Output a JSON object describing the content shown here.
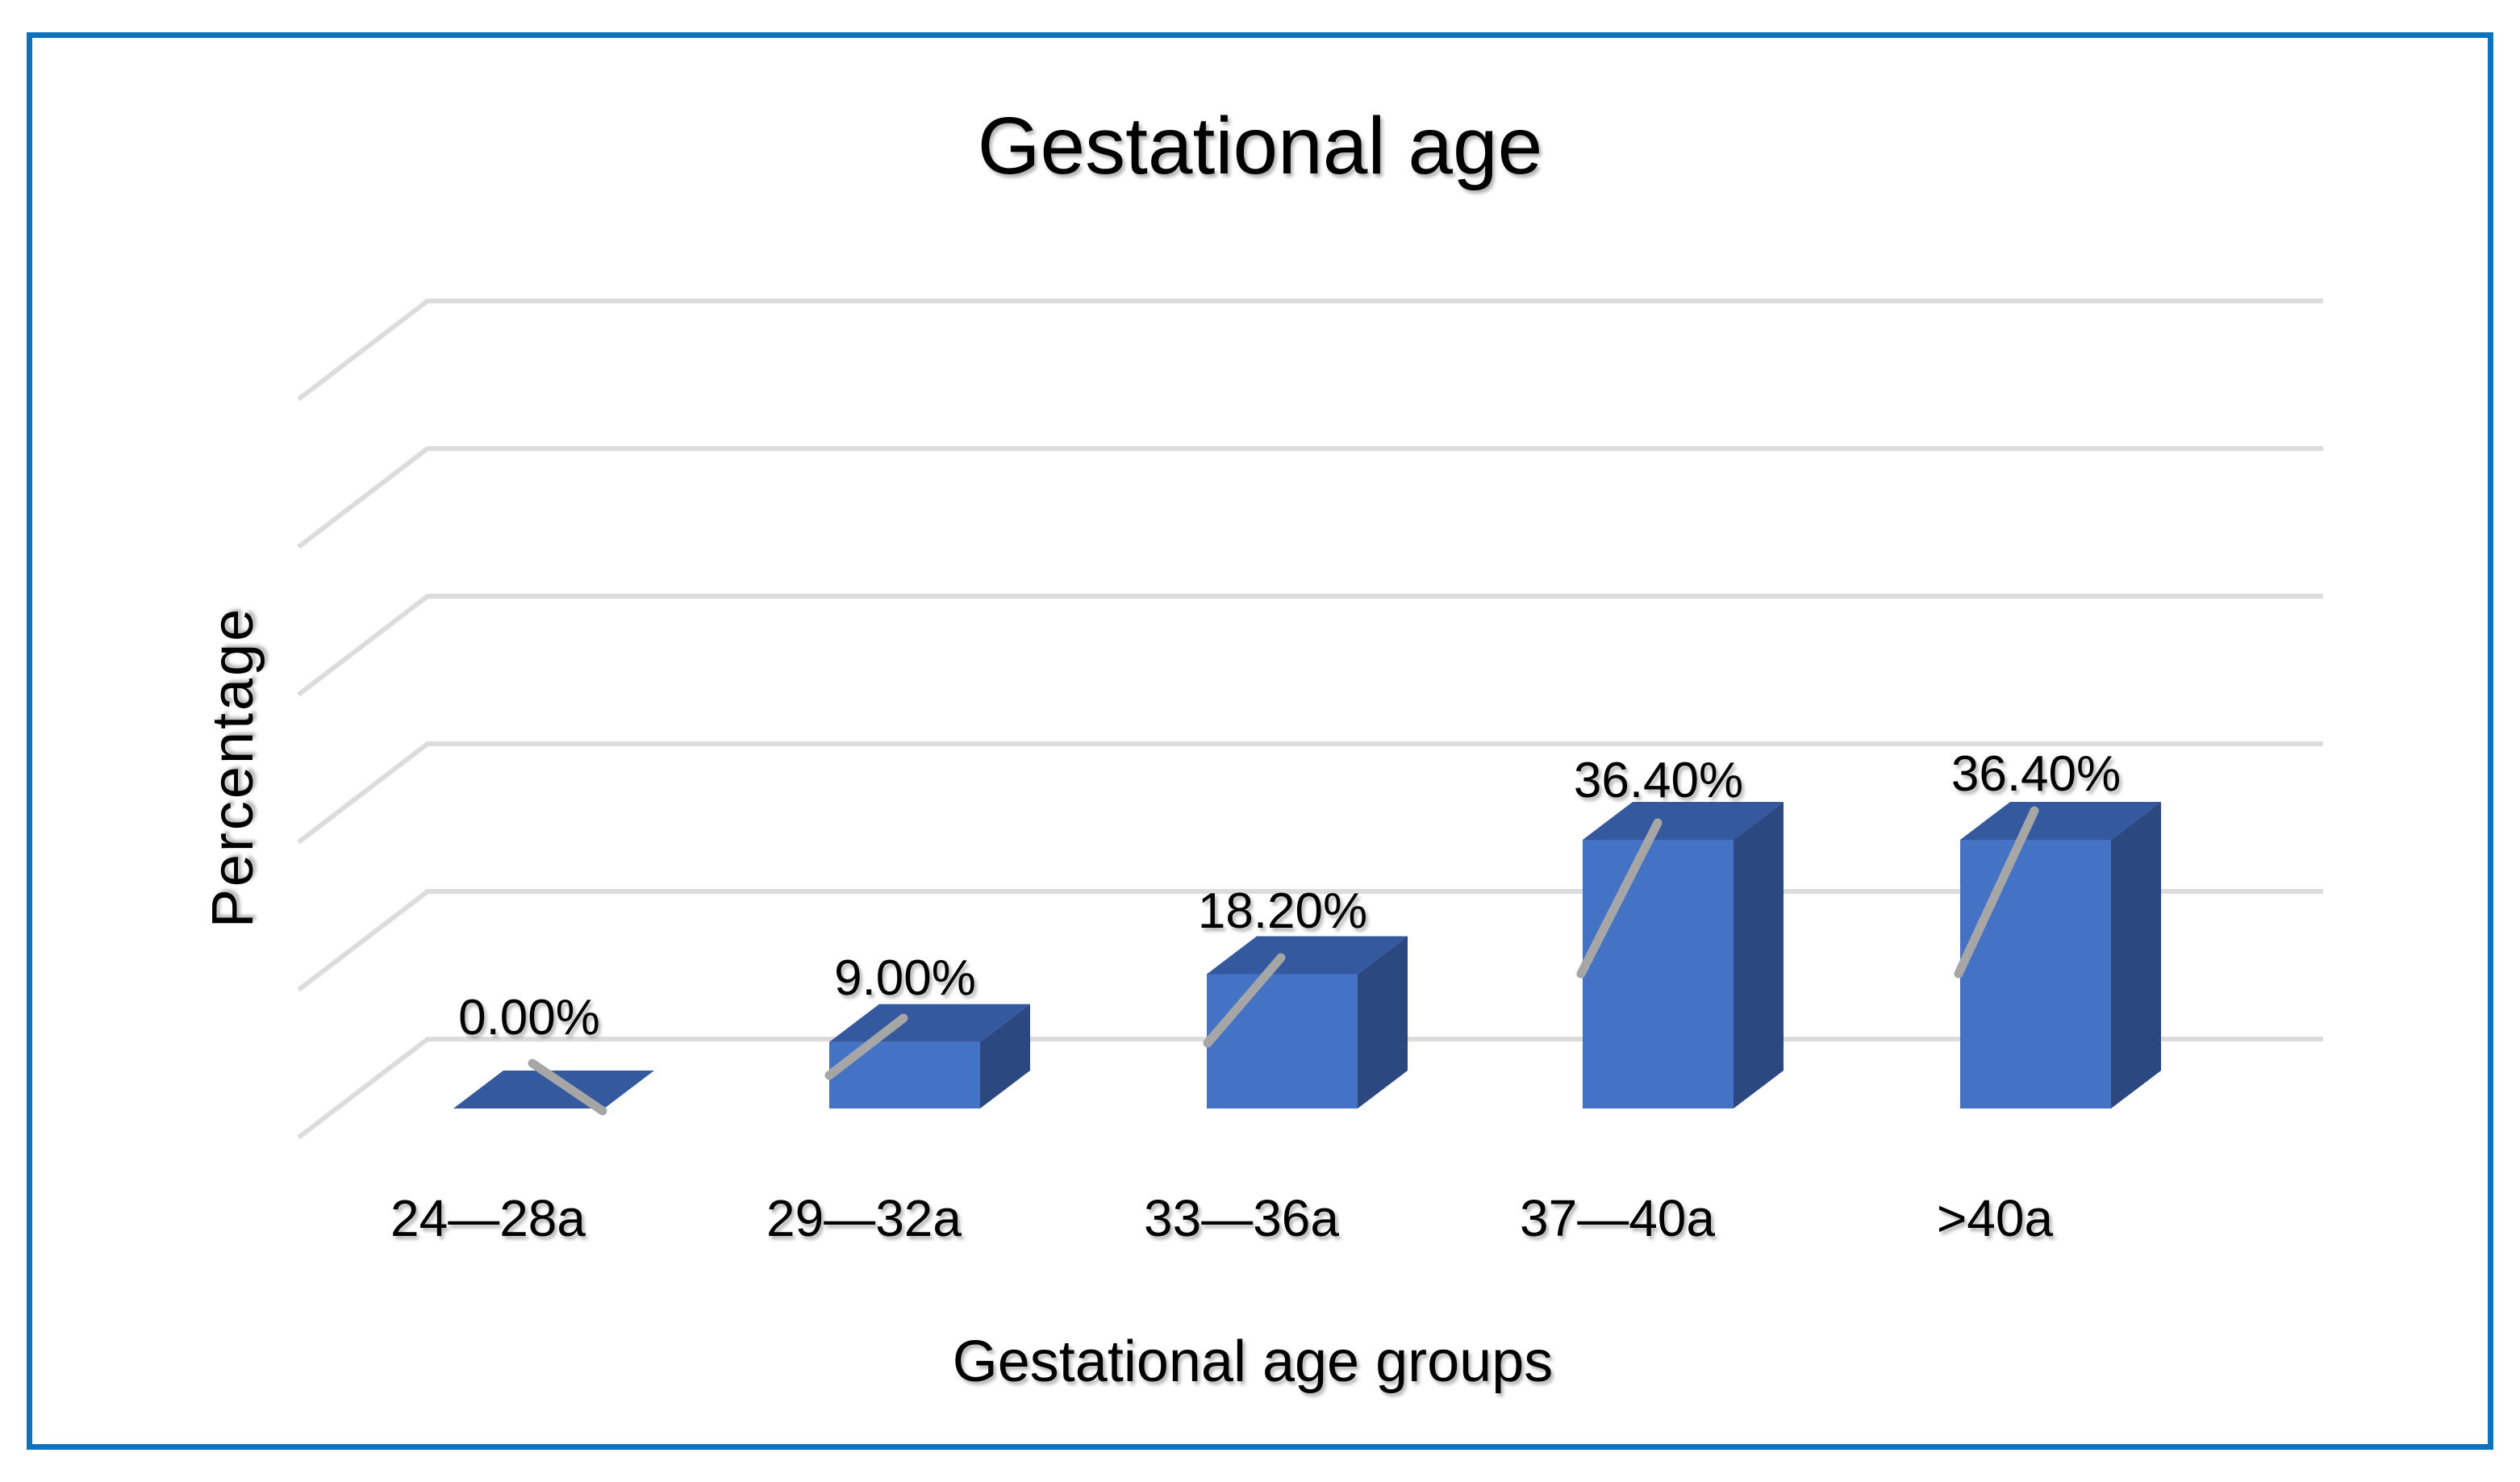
{
  "page": {
    "background": "#ffffff",
    "border_color": "#0e72bd"
  },
  "chart": {
    "title": "Gestational age",
    "x_axis_title": "Gestational age groups",
    "y_axis_title": "Percentage"
  },
  "chart_data": {
    "type": "bar",
    "subtype": "3d-column",
    "title": "Gestational age",
    "xlabel": "Gestational age groups",
    "ylabel": "Percentage",
    "categories": [
      "24—28a",
      "29—32a",
      "33—36a",
      "37—40a",
      ">40a"
    ],
    "values": [
      0.0,
      9.0,
      18.2,
      36.4,
      36.4
    ],
    "data_labels": [
      "0.00%",
      "9.00%",
      "18.20%",
      "36.40%",
      "36.40%"
    ],
    "ylim": [
      0,
      100
    ],
    "gridline_values": [
      0,
      20,
      40,
      60,
      80,
      100
    ],
    "grid": true,
    "legend": "none",
    "colors": {
      "bar_front": "#4472C4",
      "bar_top": "#35599E",
      "bar_side": "#2B4980",
      "gridline": "#DCDCDC",
      "leader_line": "#A6A6A6",
      "text": "#000000",
      "border": "#0e72bd"
    }
  }
}
